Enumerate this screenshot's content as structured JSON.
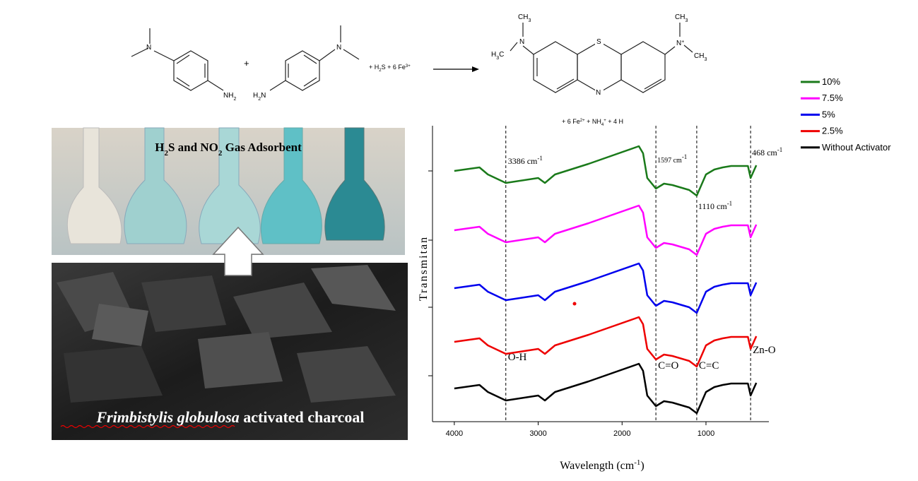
{
  "chart_data": {
    "type": "line",
    "y_label": "Transmitan",
    "x_label": [
      "Wavelength (cm",
      "-1",
      ")"
    ],
    "x": [
      4000,
      3700,
      3600,
      3386,
      3000,
      2920,
      2800,
      2400,
      1800,
      1750,
      1700,
      1597,
      1500,
      1400,
      1200,
      1110,
      1000,
      900,
      800,
      700,
      500,
      468,
      400
    ],
    "series": [
      {
        "name": "10%",
        "color": "#1a7a1a",
        "values": [
          355,
          360,
          350,
          338,
          345,
          338,
          350,
          365,
          390,
          380,
          345,
          330,
          337,
          335,
          328,
          320,
          350,
          357,
          360,
          362,
          362,
          345,
          363
        ]
      },
      {
        "name": "7.5%",
        "color": "#ff00ff",
        "values": [
          271,
          276,
          266,
          254,
          261,
          254,
          266,
          281,
          306,
          296,
          261,
          246,
          253,
          251,
          244,
          236,
          266,
          273,
          276,
          278,
          278,
          261,
          279
        ]
      },
      {
        "name": "5%",
        "color": "#0000ee",
        "values": [
          189,
          194,
          184,
          172,
          179,
          172,
          184,
          199,
          224,
          214,
          179,
          164,
          171,
          169,
          162,
          154,
          184,
          191,
          194,
          196,
          196,
          179,
          197
        ]
      },
      {
        "name": "2.5%",
        "color": "#ee0000",
        "values": [
          113,
          118,
          108,
          96,
          103,
          96,
          108,
          123,
          148,
          138,
          103,
          88,
          95,
          93,
          86,
          78,
          108,
          115,
          118,
          120,
          120,
          103,
          121
        ]
      },
      {
        "name": "Without Activator",
        "color": "#000000",
        "values": [
          47,
          52,
          42,
          30,
          37,
          30,
          42,
          57,
          82,
          72,
          37,
          22,
          29,
          27,
          20,
          12,
          42,
          49,
          52,
          54,
          54,
          37,
          55
        ]
      }
    ],
    "xlim": [
      4260,
      250
    ],
    "ylim": [
      0,
      419
    ],
    "xticks": [
      4000,
      3000,
      2000,
      1000
    ],
    "reference_lines": [
      {
        "value": 3386,
        "label": "3386 cm",
        "sup": "-1"
      },
      {
        "value": 1597,
        "label": "1597 cm",
        "sup": "-1"
      },
      {
        "value": 1110,
        "label": "1110 cm",
        "sup": "-1"
      },
      {
        "value": 468,
        "label": "468 cm",
        "sup": "-1"
      }
    ],
    "band_labels": [
      "O-H",
      "C=O",
      "C=C",
      "Zn-O"
    ]
  },
  "reaction": {
    "plus": "+",
    "n": "N",
    "nh2": [
      "NH",
      "2"
    ],
    "h2n": [
      "H",
      "2",
      "N"
    ],
    "reagents": [
      "+ H",
      "2",
      "S + 6 Fe",
      "3+"
    ],
    "h3c": [
      "H",
      "3",
      "C"
    ],
    "ch3": [
      "CH",
      "3"
    ],
    "s": "S",
    "n_plus": [
      "N",
      "+"
    ],
    "byproducts": [
      "+ 6 Fe",
      "2+",
      " +  NH",
      "4",
      "+",
      " + 4 H"
    ]
  },
  "photo": {
    "title": [
      "H",
      "2",
      "S and NO",
      "2",
      " Gas Adsorbent"
    ],
    "caption_italic": "Frimbistylis globulosa",
    "caption_rest": " activated charcoal"
  }
}
